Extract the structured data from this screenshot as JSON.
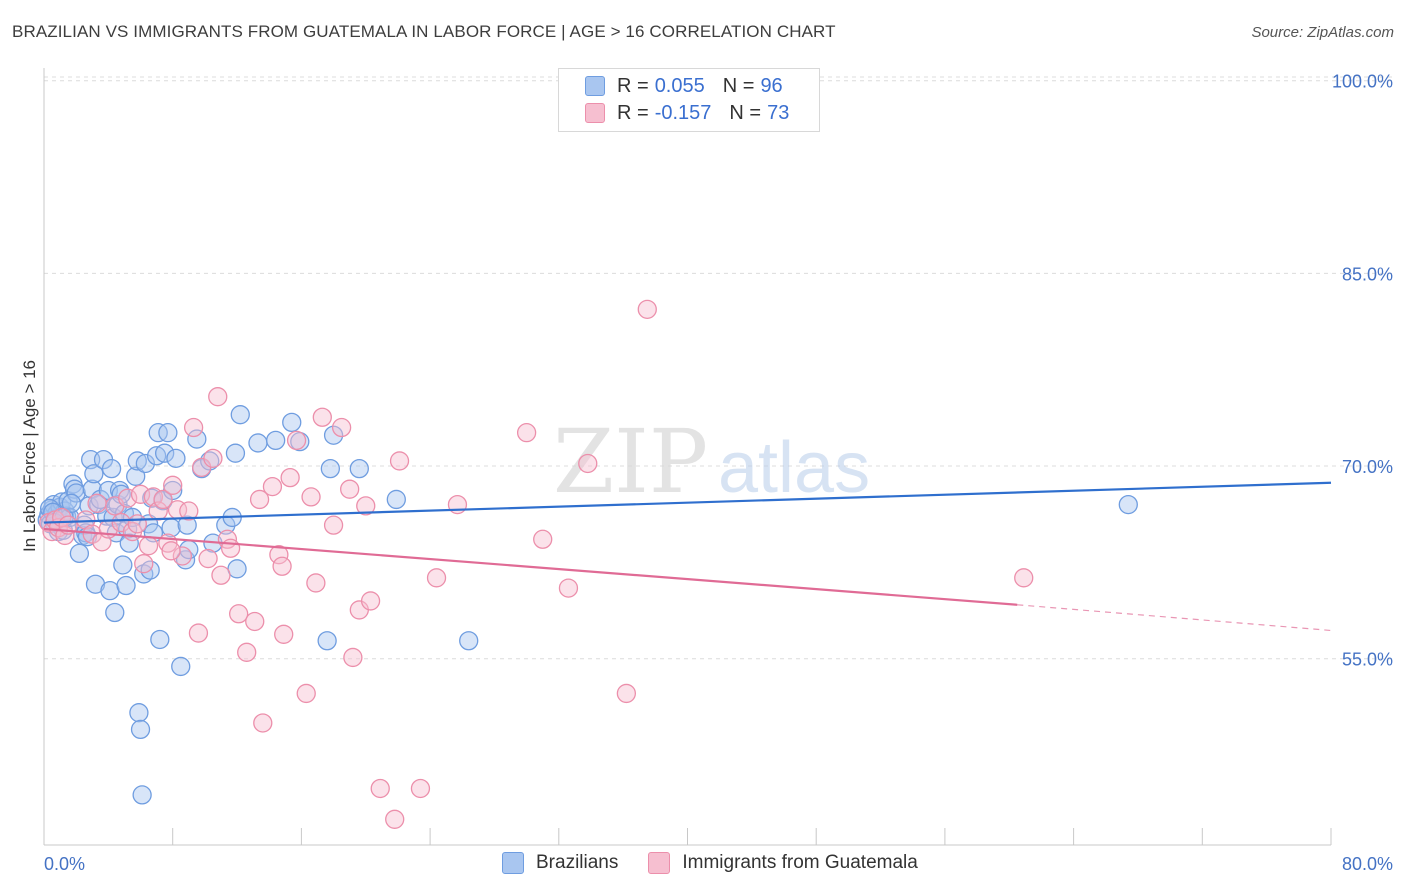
{
  "title": "BRAZILIAN VS IMMIGRANTS FROM GUATEMALA IN LABOR FORCE | AGE > 16 CORRELATION CHART",
  "source": "Source: ZipAtlas.com",
  "watermark": {
    "part1": "ZIP",
    "part2": "atlas"
  },
  "legend_top": {
    "rows": [
      {
        "r_label": "R =",
        "r_value": "0.055",
        "n_label": "N =",
        "n_value": "96"
      },
      {
        "r_label": "R =",
        "r_value": "-0.157",
        "n_label": "N =",
        "n_value": "73"
      }
    ]
  },
  "legend_bottom": [
    "Brazilians",
    "Immigrants from Guatemala"
  ],
  "colors": {
    "blue_fill": "#a9c6f0",
    "blue_stroke": "#6f9de0",
    "blue_line": "#2f6fce",
    "pink_fill": "#f6bfd0",
    "pink_stroke": "#ec8fab",
    "pink_line": "#e06b95",
    "axis_label": "#4472c4",
    "grid": "#dcdcdc"
  },
  "chart_data": {
    "type": "scatter",
    "xlabel": "",
    "ylabel": "In Labor Force | Age > 16",
    "xlim": [
      0,
      80
    ],
    "ylim": [
      40.5,
      102
    ],
    "x_tick_labels": [
      "0.0%",
      "80.0%"
    ],
    "y_ticks": [
      55,
      70,
      85,
      100
    ],
    "y_tick_labels": [
      "55.0%",
      "70.0%",
      "85.0%",
      "100.0%"
    ],
    "series": [
      {
        "name": "Brazilians",
        "r": 0.055,
        "n": 96,
        "trend": {
          "x": [
            0,
            80
          ],
          "y": [
            65.6,
            68.7
          ]
        },
        "points": [
          [
            0.2,
            65.8
          ],
          [
            0.3,
            66.2
          ],
          [
            0.4,
            65.5
          ],
          [
            0.5,
            66.6
          ],
          [
            0.6,
            67.0
          ],
          [
            0.7,
            65.9
          ],
          [
            0.8,
            66.3
          ],
          [
            0.9,
            64.9
          ],
          [
            1.0,
            66.8
          ],
          [
            1.1,
            67.2
          ],
          [
            1.2,
            65.0
          ],
          [
            1.3,
            66.5
          ],
          [
            1.4,
            66.1
          ],
          [
            1.5,
            67.3
          ],
          [
            1.6,
            66.0
          ],
          [
            1.8,
            68.6
          ],
          [
            1.9,
            68.2
          ],
          [
            2.0,
            67.9
          ],
          [
            2.2,
            63.2
          ],
          [
            2.4,
            64.6
          ],
          [
            2.5,
            65.4
          ],
          [
            2.6,
            64.8
          ],
          [
            2.8,
            66.9
          ],
          [
            2.9,
            70.5
          ],
          [
            3.0,
            68.2
          ],
          [
            3.1,
            69.4
          ],
          [
            3.2,
            60.8
          ],
          [
            3.4,
            67.0
          ],
          [
            3.5,
            67.4
          ],
          [
            3.7,
            70.5
          ],
          [
            3.9,
            66.1
          ],
          [
            4.0,
            68.1
          ],
          [
            4.1,
            60.3
          ],
          [
            4.2,
            69.8
          ],
          [
            4.3,
            66.0
          ],
          [
            4.4,
            58.6
          ],
          [
            4.5,
            64.8
          ],
          [
            4.6,
            67.0
          ],
          [
            4.7,
            68.1
          ],
          [
            4.8,
            67.8
          ],
          [
            4.9,
            62.3
          ],
          [
            5.0,
            66.3
          ],
          [
            5.1,
            60.7
          ],
          [
            5.2,
            65.1
          ],
          [
            5.3,
            64.0
          ],
          [
            5.5,
            66.0
          ],
          [
            5.7,
            69.2
          ],
          [
            5.8,
            70.4
          ],
          [
            5.9,
            50.8
          ],
          [
            6.0,
            49.5
          ],
          [
            6.1,
            44.4
          ],
          [
            6.2,
            61.6
          ],
          [
            6.3,
            70.2
          ],
          [
            6.5,
            65.5
          ],
          [
            6.6,
            61.9
          ],
          [
            6.7,
            67.5
          ],
          [
            6.8,
            64.8
          ],
          [
            7.0,
            70.8
          ],
          [
            7.1,
            72.6
          ],
          [
            7.2,
            56.5
          ],
          [
            7.4,
            67.3
          ],
          [
            7.5,
            71.0
          ],
          [
            7.7,
            72.6
          ],
          [
            7.9,
            65.2
          ],
          [
            8.0,
            68.1
          ],
          [
            8.2,
            70.6
          ],
          [
            8.5,
            54.4
          ],
          [
            8.8,
            62.7
          ],
          [
            8.9,
            65.4
          ],
          [
            9.0,
            63.5
          ],
          [
            9.5,
            72.1
          ],
          [
            9.8,
            69.8
          ],
          [
            10.3,
            70.4
          ],
          [
            10.5,
            64.0
          ],
          [
            11.3,
            65.4
          ],
          [
            11.7,
            66.0
          ],
          [
            11.9,
            71.0
          ],
          [
            12.0,
            62.0
          ],
          [
            12.2,
            74.0
          ],
          [
            13.3,
            71.8
          ],
          [
            14.4,
            72.0
          ],
          [
            15.4,
            73.4
          ],
          [
            15.9,
            71.9
          ],
          [
            17.6,
            56.4
          ],
          [
            17.8,
            69.8
          ],
          [
            18.0,
            72.4
          ],
          [
            19.6,
            69.8
          ],
          [
            21.9,
            67.4
          ],
          [
            26.4,
            56.4
          ],
          [
            67.4,
            67.0
          ],
          [
            0.35,
            66.7
          ],
          [
            0.55,
            66.4
          ],
          [
            0.65,
            65.6
          ],
          [
            1.25,
            66.0
          ],
          [
            1.7,
            67.1
          ],
          [
            2.7,
            64.5
          ]
        ]
      },
      {
        "name": "Immigrants from Guatemala",
        "r": -0.157,
        "n": 73,
        "trend": {
          "x": [
            0,
            60.5
          ],
          "y": [
            65.1,
            59.2
          ]
        },
        "trend_dashed": {
          "x": [
            60.5,
            80
          ],
          "y": [
            59.2,
            57.2
          ]
        },
        "points": [
          [
            0.3,
            65.6
          ],
          [
            0.5,
            64.9
          ],
          [
            0.7,
            65.8
          ],
          [
            0.9,
            65.2
          ],
          [
            1.1,
            66.0
          ],
          [
            1.3,
            64.6
          ],
          [
            1.5,
            65.4
          ],
          [
            2.6,
            65.8
          ],
          [
            3.0,
            64.7
          ],
          [
            3.3,
            67.1
          ],
          [
            3.6,
            64.1
          ],
          [
            4.0,
            65.1
          ],
          [
            4.4,
            66.9
          ],
          [
            4.8,
            65.6
          ],
          [
            5.2,
            67.5
          ],
          [
            5.5,
            64.9
          ],
          [
            5.8,
            65.5
          ],
          [
            6.0,
            67.8
          ],
          [
            6.2,
            62.4
          ],
          [
            6.5,
            63.8
          ],
          [
            6.8,
            67.6
          ],
          [
            7.1,
            66.5
          ],
          [
            7.4,
            67.4
          ],
          [
            7.7,
            64.0
          ],
          [
            8.0,
            68.5
          ],
          [
            8.3,
            66.6
          ],
          [
            8.6,
            63.0
          ],
          [
            9.0,
            66.5
          ],
          [
            9.3,
            73.0
          ],
          [
            9.6,
            57.0
          ],
          [
            9.8,
            69.9
          ],
          [
            10.2,
            62.8
          ],
          [
            10.5,
            70.6
          ],
          [
            10.8,
            75.4
          ],
          [
            11.0,
            61.5
          ],
          [
            11.4,
            64.3
          ],
          [
            11.6,
            63.6
          ],
          [
            12.1,
            58.5
          ],
          [
            12.6,
            55.5
          ],
          [
            13.1,
            57.9
          ],
          [
            13.4,
            67.4
          ],
          [
            13.6,
            50.0
          ],
          [
            14.2,
            68.4
          ],
          [
            14.6,
            63.1
          ],
          [
            14.9,
            56.9
          ],
          [
            15.3,
            69.1
          ],
          [
            15.7,
            72.0
          ],
          [
            16.3,
            52.3
          ],
          [
            16.6,
            67.6
          ],
          [
            16.9,
            60.9
          ],
          [
            17.3,
            73.8
          ],
          [
            18.0,
            65.4
          ],
          [
            18.5,
            73.0
          ],
          [
            19.2,
            55.1
          ],
          [
            19.6,
            58.8
          ],
          [
            20.3,
            59.5
          ],
          [
            20.9,
            44.9
          ],
          [
            21.8,
            42.5
          ],
          [
            22.1,
            70.4
          ],
          [
            23.4,
            44.9
          ],
          [
            24.4,
            61.3
          ],
          [
            25.7,
            67.0
          ],
          [
            30.0,
            72.6
          ],
          [
            31.0,
            64.3
          ],
          [
            32.6,
            60.5
          ],
          [
            33.8,
            70.2
          ],
          [
            36.2,
            52.3
          ],
          [
            37.5,
            82.2
          ],
          [
            60.9,
            61.3
          ],
          [
            19.0,
            68.2
          ],
          [
            20.0,
            66.9
          ],
          [
            14.8,
            62.2
          ],
          [
            7.9,
            63.4
          ]
        ]
      }
    ]
  }
}
